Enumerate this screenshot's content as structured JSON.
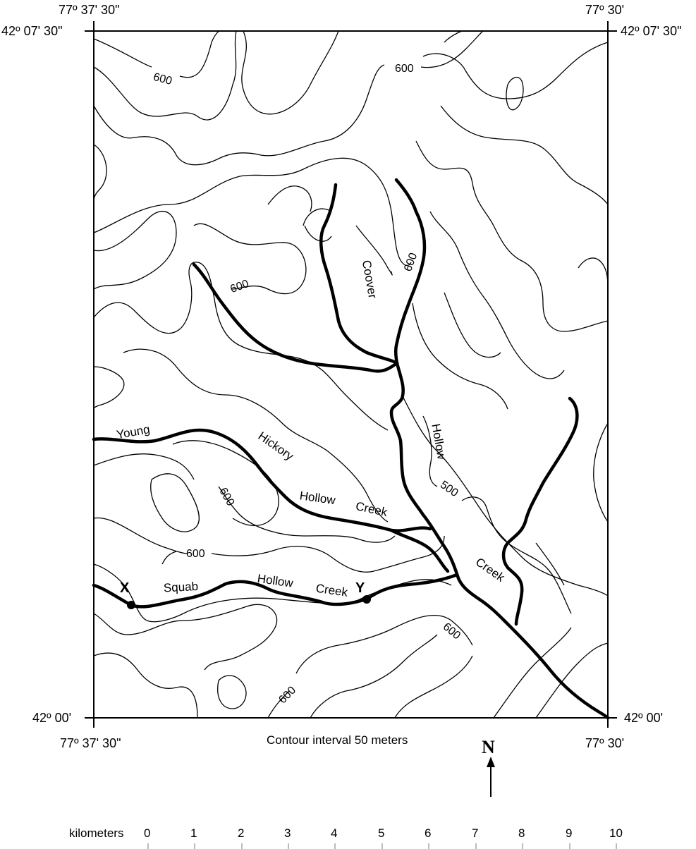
{
  "coords": {
    "top_left_lon": "77º 37' 30\"",
    "top_right_lon": "77º 30'",
    "top_left_lat": "42º 07' 30\"",
    "top_right_lat": "42º 07' 30\"",
    "bottom_left_lat": "42º 00'",
    "bottom_right_lat": "42º 00'",
    "bottom_left_lon": "77º 37' 30\"",
    "bottom_right_lon": "77º 30'"
  },
  "contour_labels": [
    "600",
    "600",
    "600",
    "600",
    "600",
    "600",
    "600",
    "600",
    "500"
  ],
  "stream_labels": {
    "coover": "Coover",
    "hollow_n": "Hollow",
    "young": "Young",
    "hickory": "Hickory",
    "hollow_w": "Hollow",
    "creek_w": "Creek",
    "squab": "Squab",
    "hollow_s": "Hollow",
    "creek_s": "Creek",
    "creek_e": "Creek"
  },
  "points": {
    "x": "X",
    "y": "Y"
  },
  "caption": "Contour interval 50 meters",
  "north": "N",
  "scale": {
    "unit": "kilometers",
    "ticks": [
      "0",
      "1",
      "2",
      "3",
      "4",
      "5",
      "6",
      "7",
      "8",
      "9",
      "10"
    ]
  }
}
